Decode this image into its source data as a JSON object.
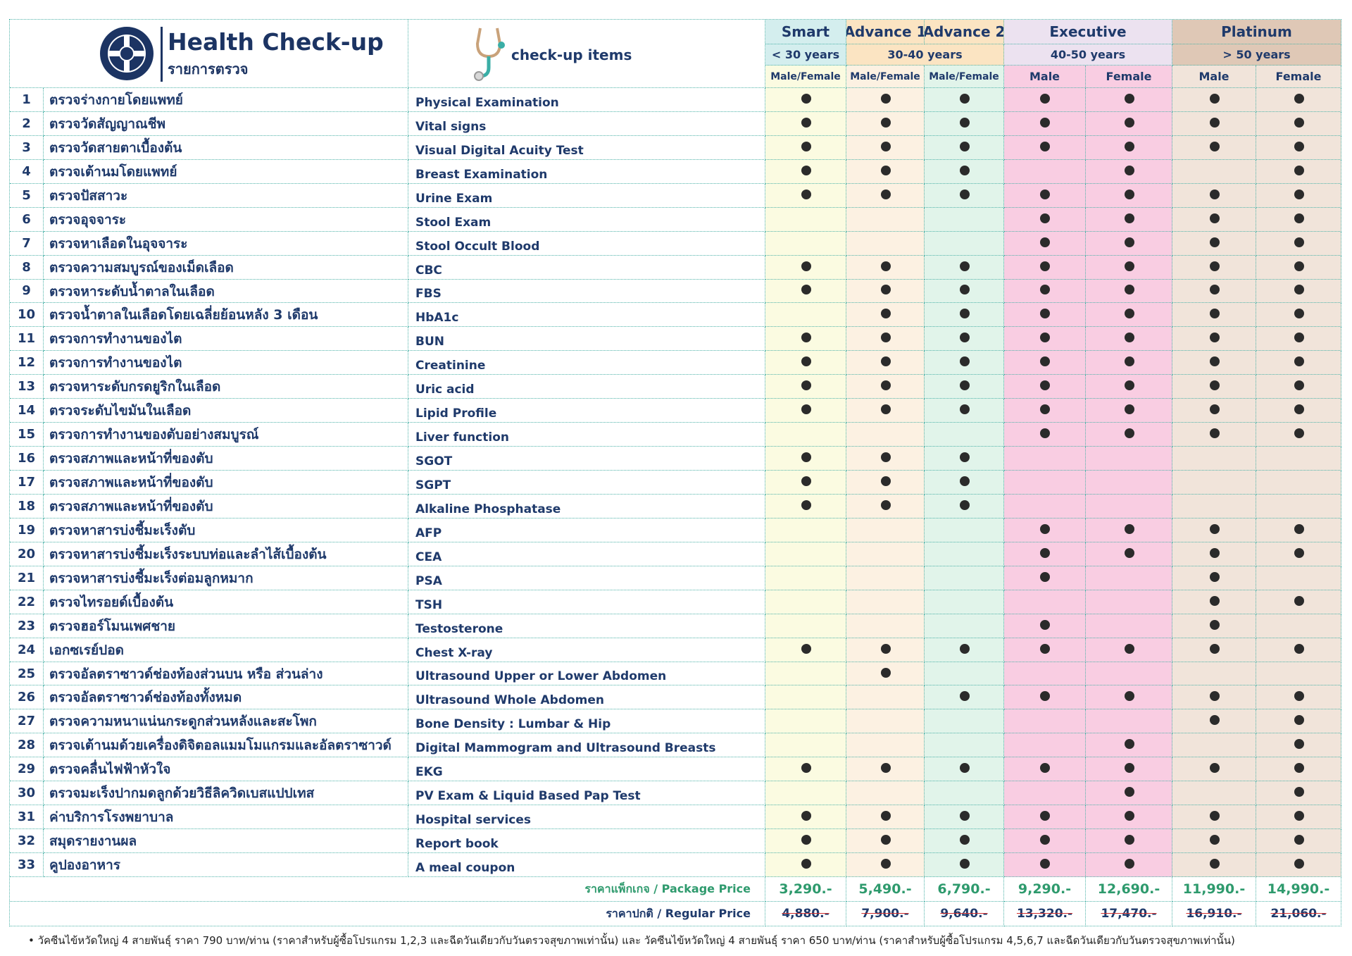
{
  "header": {
    "title": "Health Check-up",
    "subtitle": "รายการตรวจ",
    "items_label": "check-up items"
  },
  "packages": [
    {
      "name": "Smart"
    },
    {
      "name": "Advance 1"
    },
    {
      "name": "Advance 2"
    },
    {
      "name": "Executive"
    },
    {
      "name": "Platinum"
    }
  ],
  "ages": [
    "< 30 years",
    "30-40 years",
    "40-50 years",
    "> 50 years"
  ],
  "genders": [
    "Male/Female",
    "Male/Female",
    "Male/Female",
    "Male",
    "Female",
    "Male",
    "Female"
  ],
  "rows": [
    {
      "no": 1,
      "thai": "ตรวจร่างกายโดยแพทย์",
      "english": "Physical Examination",
      "checks": [
        true,
        true,
        true,
        true,
        true,
        true,
        true
      ]
    },
    {
      "no": 2,
      "thai": "ตรวจวัดสัญญาณชีพ",
      "english": "Vital signs",
      "checks": [
        true,
        true,
        true,
        true,
        true,
        true,
        true
      ]
    },
    {
      "no": 3,
      "thai": "ตรวจวัดสายตาเบื้องต้น",
      "english": "Visual Digital Acuity Test",
      "checks": [
        true,
        true,
        true,
        true,
        true,
        true,
        true
      ]
    },
    {
      "no": 4,
      "thai": "ตรวจเต้านมโดยแพทย์",
      "english": "Breast Examination",
      "checks": [
        true,
        true,
        true,
        false,
        true,
        false,
        true
      ]
    },
    {
      "no": 5,
      "thai": "ตรวจปัสสาวะ",
      "english": "Urine Exam",
      "checks": [
        true,
        true,
        true,
        true,
        true,
        true,
        true
      ]
    },
    {
      "no": 6,
      "thai": "ตรวจอุจจาระ",
      "english": "Stool Exam",
      "checks": [
        false,
        false,
        false,
        true,
        true,
        true,
        true
      ]
    },
    {
      "no": 7,
      "thai": "ตรวจหาเลือดในอุจจาระ",
      "english": "Stool Occult Blood",
      "checks": [
        false,
        false,
        false,
        true,
        true,
        true,
        true
      ]
    },
    {
      "no": 8,
      "thai": "ตรวจความสมบูรณ์ของเม็ดเลือด",
      "english": "CBC",
      "checks": [
        true,
        true,
        true,
        true,
        true,
        true,
        true
      ]
    },
    {
      "no": 9,
      "thai": "ตรวจหาระดับน้ำตาลในเลือด",
      "english": "FBS",
      "checks": [
        true,
        true,
        true,
        true,
        true,
        true,
        true
      ]
    },
    {
      "no": 10,
      "thai": "ตรวจน้ำตาลในเลือดโดยเฉลี่ยย้อนหลัง 3 เดือน",
      "english": "HbA1c",
      "checks": [
        false,
        true,
        true,
        true,
        true,
        true,
        true
      ]
    },
    {
      "no": 11,
      "thai": "ตรวจการทำงานของไต",
      "english": "BUN",
      "checks": [
        true,
        true,
        true,
        true,
        true,
        true,
        true
      ]
    },
    {
      "no": 12,
      "thai": "ตรวจการทำงานของไต",
      "english": "Creatinine",
      "checks": [
        true,
        true,
        true,
        true,
        true,
        true,
        true
      ]
    },
    {
      "no": 13,
      "thai": "ตรวจหาระดับกรดยูริกในเลือด",
      "english": "Uric acid",
      "checks": [
        true,
        true,
        true,
        true,
        true,
        true,
        true
      ]
    },
    {
      "no": 14,
      "thai": "ตรวจระดับไขมันในเลือด",
      "english": "Lipid Profile",
      "checks": [
        true,
        true,
        true,
        true,
        true,
        true,
        true
      ]
    },
    {
      "no": 15,
      "thai": "ตรวจการทำงานของตับอย่างสมบูรณ์",
      "english": "Liver function",
      "checks": [
        false,
        false,
        false,
        true,
        true,
        true,
        true
      ]
    },
    {
      "no": 16,
      "thai": "ตรวจสภาพและหน้าที่ของตับ",
      "english": "SGOT",
      "checks": [
        true,
        true,
        true,
        false,
        false,
        false,
        false
      ]
    },
    {
      "no": 17,
      "thai": "ตรวจสภาพและหน้าที่ของตับ",
      "english": "SGPT",
      "checks": [
        true,
        true,
        true,
        false,
        false,
        false,
        false
      ]
    },
    {
      "no": 18,
      "thai": "ตรวจสภาพและหน้าที่ของตับ",
      "english": "Alkaline Phosphatase",
      "checks": [
        true,
        true,
        true,
        false,
        false,
        false,
        false
      ]
    },
    {
      "no": 19,
      "thai": "ตรวจหาสารบ่งชี้มะเร็งตับ",
      "english": "AFP",
      "checks": [
        false,
        false,
        false,
        true,
        true,
        true,
        true
      ]
    },
    {
      "no": 20,
      "thai": "ตรวจหาสารบ่งชี้มะเร็งระบบท่อและลำไส้เบื้องต้น",
      "english": "CEA",
      "checks": [
        false,
        false,
        false,
        true,
        true,
        true,
        true
      ]
    },
    {
      "no": 21,
      "thai": "ตรวจหาสารบ่งชี้มะเร็งต่อมลูกหมาก",
      "english": "PSA",
      "checks": [
        false,
        false,
        false,
        true,
        false,
        true,
        false
      ]
    },
    {
      "no": 22,
      "thai": "ตรวจไทรอยด์เบื้องต้น",
      "english": "TSH",
      "checks": [
        false,
        false,
        false,
        false,
        false,
        true,
        true
      ]
    },
    {
      "no": 23,
      "thai": "ตรวจฮอร์โมนเพศชาย",
      "english": "Testosterone",
      "checks": [
        false,
        false,
        false,
        true,
        false,
        true,
        false
      ]
    },
    {
      "no": 24,
      "thai": "เอกซเรย์ปอด",
      "english": "Chest X-ray",
      "checks": [
        true,
        true,
        true,
        true,
        true,
        true,
        true
      ]
    },
    {
      "no": 25,
      "thai": "ตรวจอัลตราซาวด์ช่องท้องส่วนบน หรือ ส่วนล่าง",
      "english": "Ultrasound Upper or Lower Abdomen",
      "checks": [
        false,
        true,
        false,
        false,
        false,
        false,
        false
      ]
    },
    {
      "no": 26,
      "thai": "ตรวจอัลตราซาวด์ช่องท้องทั้งหมด",
      "english": "Ultrasound Whole Abdomen",
      "checks": [
        false,
        false,
        true,
        true,
        true,
        true,
        true
      ]
    },
    {
      "no": 27,
      "thai": "ตรวจความหนาแน่นกระดูกส่วนหลังและสะโพก",
      "english": "Bone Density : Lumbar & Hip",
      "checks": [
        false,
        false,
        false,
        false,
        false,
        true,
        true
      ]
    },
    {
      "no": 28,
      "thai": "ตรวจเต้านมด้วยเครื่องดิจิตอลแมมโมแกรมและอัลตราซาวด์",
      "english": "Digital Mammogram and Ultrasound Breasts",
      "checks": [
        false,
        false,
        false,
        false,
        true,
        false,
        true
      ]
    },
    {
      "no": 29,
      "thai": "ตรวจคลื่นไฟฟ้าหัวใจ",
      "english": "EKG",
      "checks": [
        true,
        true,
        true,
        true,
        true,
        true,
        true
      ]
    },
    {
      "no": 30,
      "thai": "ตรวจมะเร็งปากมดลูกด้วยวิธีลิควิดเบสแปปเทส",
      "english": "PV Exam & Liquid Based Pap Test",
      "checks": [
        false,
        false,
        false,
        false,
        true,
        false,
        true
      ]
    },
    {
      "no": 31,
      "thai": "ค่าบริการโรงพยาบาล",
      "english": "Hospital services",
      "checks": [
        true,
        true,
        true,
        true,
        true,
        true,
        true
      ]
    },
    {
      "no": 32,
      "thai": "สมุดรายงานผล",
      "english": "Report book",
      "checks": [
        true,
        true,
        true,
        true,
        true,
        true,
        true
      ]
    },
    {
      "no": 33,
      "thai": "คูปองอาหาร",
      "english": "A meal coupon",
      "checks": [
        true,
        true,
        true,
        true,
        true,
        true,
        true
      ]
    }
  ],
  "prices": {
    "package_label": "ราคาแพ็กเกจ / Package Price",
    "package": [
      "3,290.-",
      "5,490.-",
      "6,790.-",
      "9,290.-",
      "12,690.-",
      "11,990.-",
      "14,990.-"
    ],
    "regular_label": "ราคาปกติ / Regular Price",
    "regular": [
      "4,880.-",
      "7,900.-",
      "9,640.-",
      "13,320.-",
      "17,470.-",
      "16,910.-",
      "21,060.-"
    ]
  },
  "footnote": "• วัคซีนไข้หวัดใหญ่ 4 สายพันธุ์ ราคา 790 บาท/ท่าน (ราคาสำหรับผู้ซื้อโปรแกรม 1,2,3 และฉีดวันเดียวกับวันตรวจสุขภาพเท่านั้น) และ วัคซีนไข้หวัดใหญ่ 4 สายพันธุ์ ราคา 650 บาท/ท่าน (ราคาสำหรับผู้ซื้อโปรแกรม 4,5,6,7 และฉีดวันเดียวกับวันตรวจสุขภาพเท่านั้น)"
}
